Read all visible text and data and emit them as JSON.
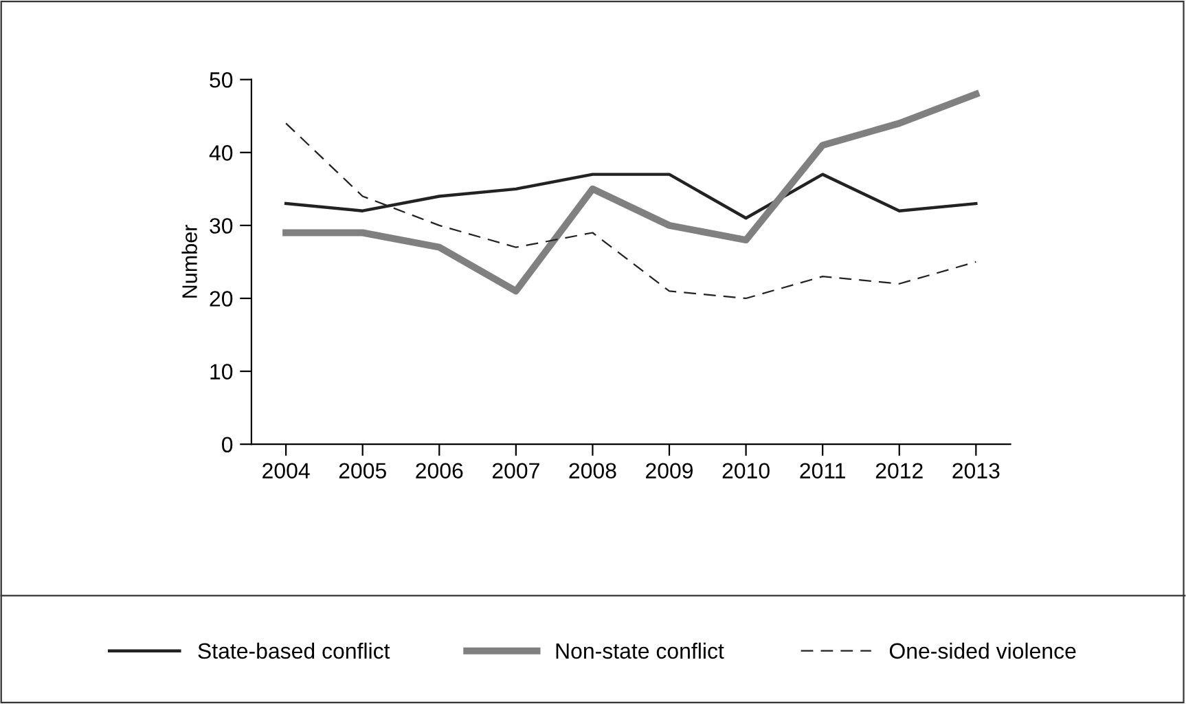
{
  "chart_data": {
    "type": "line",
    "ylabel": "Number",
    "categories": [
      "2004",
      "2005",
      "2006",
      "2007",
      "2008",
      "2009",
      "2010",
      "2011",
      "2012",
      "2013"
    ],
    "series": [
      {
        "name": "State-based conflict",
        "color": "#222222",
        "line_style": "solid",
        "values": [
          33,
          32,
          34,
          35,
          37,
          37,
          31,
          37,
          32,
          33
        ]
      },
      {
        "name": "Non-state conflict",
        "color": "#808080",
        "line_style": "solid",
        "values": [
          29,
          29,
          27,
          21,
          35,
          30,
          28,
          41,
          44,
          48
        ]
      },
      {
        "name": "One-sided violence",
        "color": "#222222",
        "line_style": "dashed",
        "values": [
          44,
          34,
          30,
          27,
          29,
          21,
          20,
          23,
          22,
          25
        ]
      }
    ],
    "ylim": [
      0,
      50
    ],
    "yticks": [
      0,
      10,
      20,
      30,
      40,
      50
    ],
    "grid": false,
    "legend": "bottom",
    "marker": "none"
  }
}
